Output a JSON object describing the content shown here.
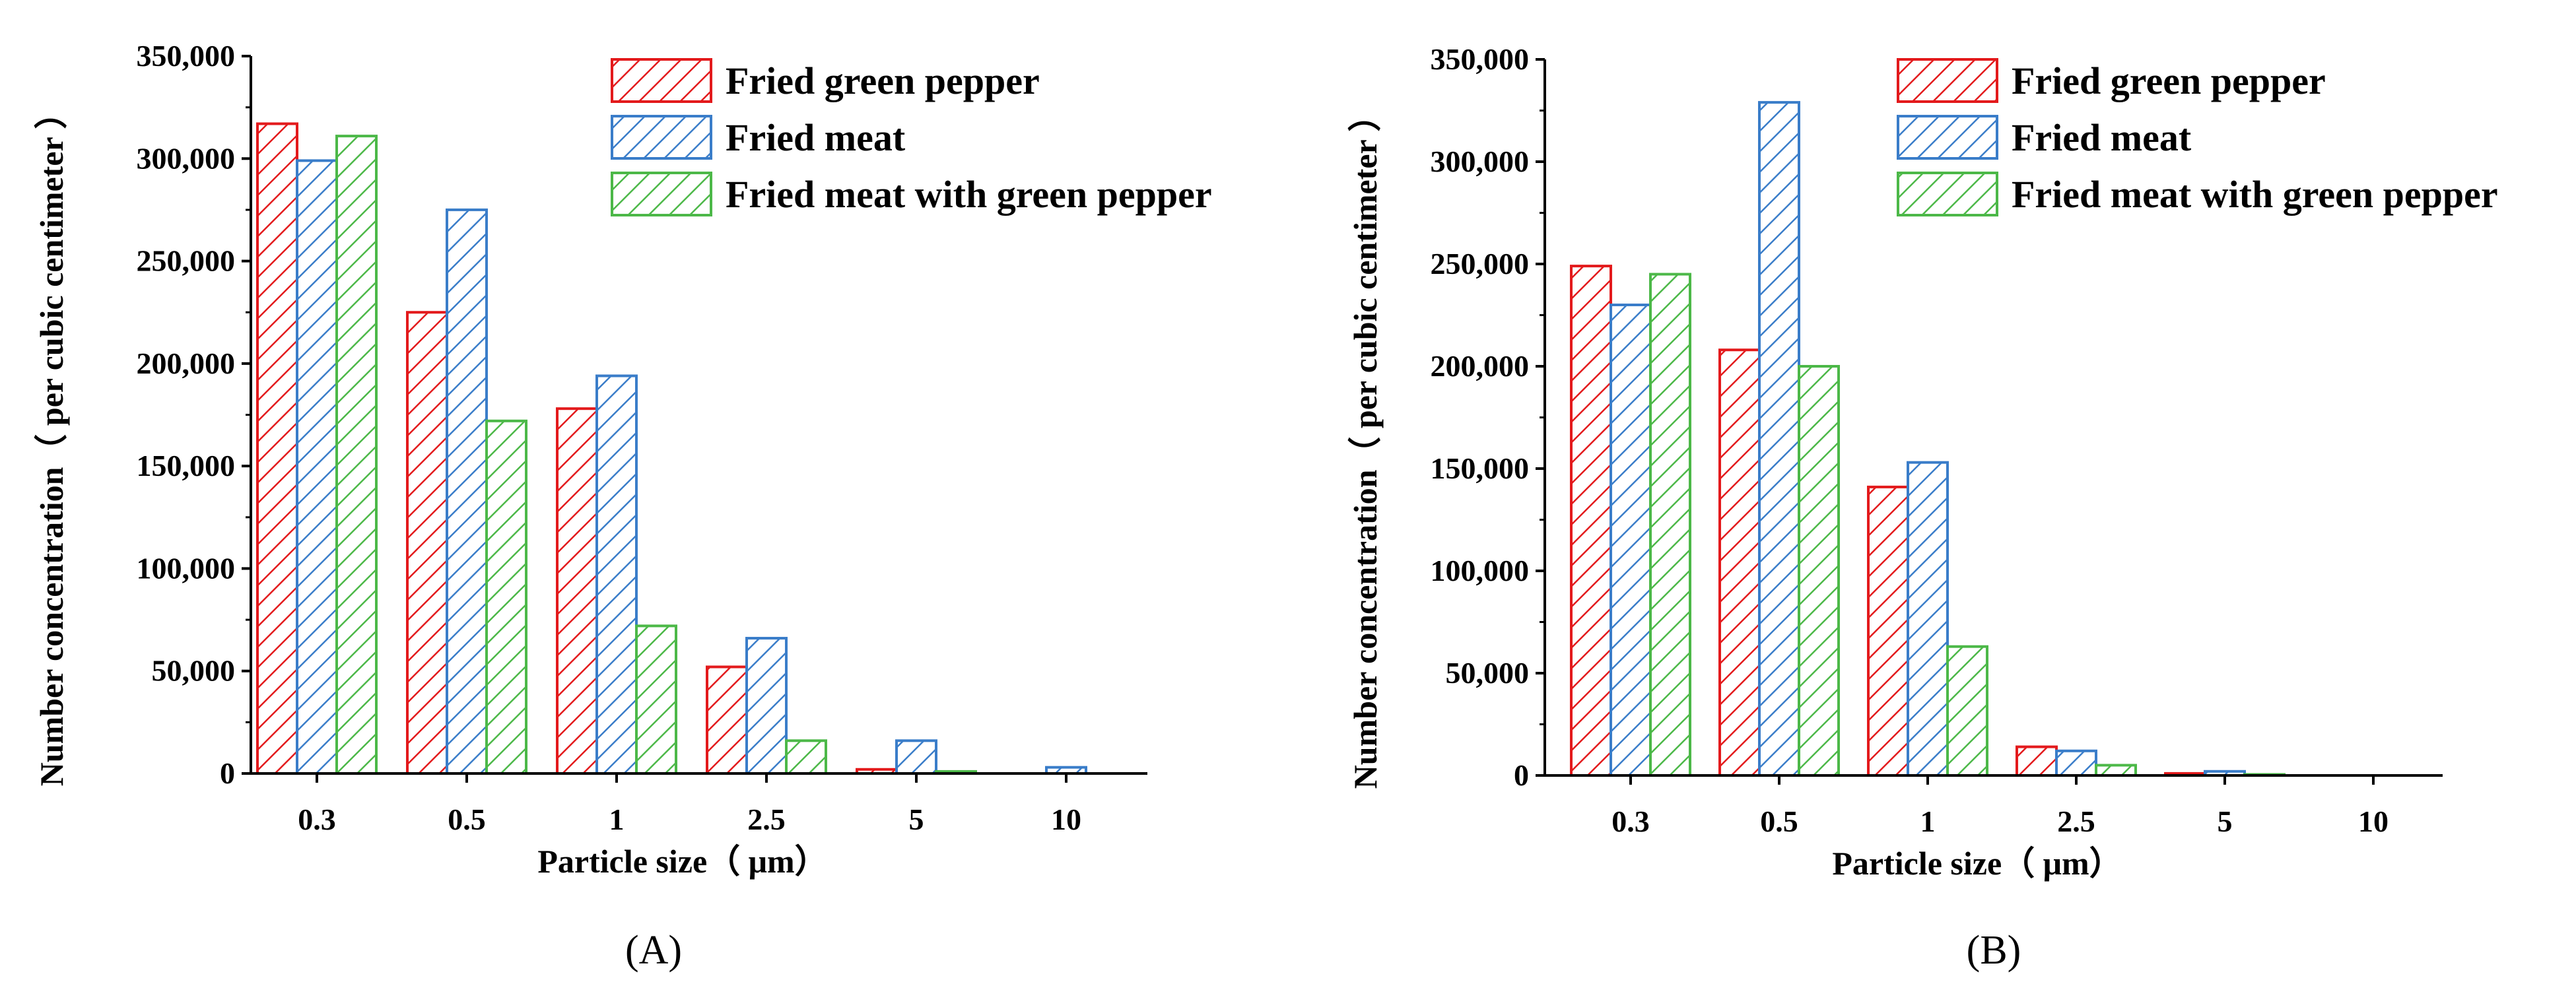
{
  "colors": {
    "Fried green pepper": "#e31a1c",
    "Fried meat": "#3a7dc9",
    "Fried meat with green pepper": "#4cb848"
  },
  "chart_data": [
    {
      "type": "bar",
      "panel_label": "(A)",
      "categories": [
        "0.3",
        "0.5",
        "1",
        "2.5",
        "5",
        "10"
      ],
      "series": [
        {
          "name": "Fried green pepper",
          "values": [
            317000,
            225000,
            178000,
            52000,
            2000,
            0
          ]
        },
        {
          "name": "Fried meat",
          "values": [
            299000,
            275000,
            194000,
            66000,
            16000,
            3000
          ]
        },
        {
          "name": "Fried meat with green pepper",
          "values": [
            311000,
            172000,
            72000,
            16000,
            1000,
            0
          ]
        }
      ],
      "xlabel": "Particle size（ μm）",
      "ylabel": "Number concentration（ per cubic centimeter ）",
      "ylim": [
        0,
        350000
      ],
      "yticks": [
        "0",
        "50,000",
        "100,000",
        "150,000",
        "200,000",
        "250,000",
        "300,000",
        "350,000"
      ],
      "grid": false,
      "legend_position": "top-right"
    },
    {
      "type": "bar",
      "panel_label": "(B)",
      "categories": [
        "0.3",
        "0.5",
        "1",
        "2.5",
        "5",
        "10"
      ],
      "series": [
        {
          "name": "Fried green pepper",
          "values": [
            249000,
            208000,
            141000,
            14000,
            1000,
            0
          ]
        },
        {
          "name": "Fried meat",
          "values": [
            230000,
            329000,
            153000,
            12000,
            2000,
            0
          ]
        },
        {
          "name": "Fried meat with green pepper",
          "values": [
            245000,
            200000,
            63000,
            5000,
            500,
            0
          ]
        }
      ],
      "xlabel": "Particle size（ μm）",
      "ylabel": "Number concentration（ per cubic centimeter ）",
      "ylim": [
        0,
        350000
      ],
      "yticks": [
        "0",
        "50,000",
        "100,000",
        "150,000",
        "200,000",
        "250,000",
        "300,000",
        "350,000"
      ],
      "grid": false,
      "legend_position": "top-right"
    }
  ]
}
